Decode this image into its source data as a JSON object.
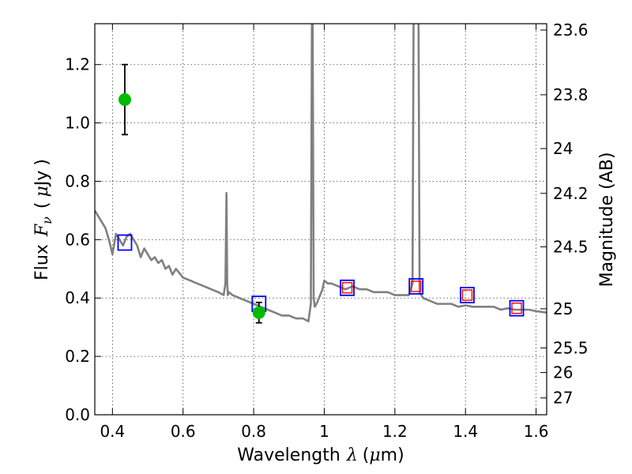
{
  "chart_data": {
    "type": "line",
    "xlabel_text": "Wavelength",
    "xlabel_symbol": "λ",
    "xlabel_unit_open": "(",
    "xlabel_unit_mu": "μ",
    "xlabel_unit_rest": "m)",
    "ylabel_text": "Flux",
    "ylabel_symbol": "F",
    "ylabel_subscript": "ν",
    "ylabel_unit_open": "(",
    "ylabel_unit_mu": "μ",
    "ylabel_unit_rest": "Jy",
    "ylabel_unit_close": ")",
    "ylabel_right": "Magnitude (AB)",
    "xlim": [
      0.35,
      1.63
    ],
    "ylim": [
      0.0,
      1.34
    ],
    "x_ticks": [
      {
        "value": 0.4,
        "label": "0.4"
      },
      {
        "value": 0.6,
        "label": "0.6"
      },
      {
        "value": 0.8,
        "label": "0.8"
      },
      {
        "value": 1.0,
        "label": "1"
      },
      {
        "value": 1.2,
        "label": "1.2"
      },
      {
        "value": 1.4,
        "label": "1.4"
      },
      {
        "value": 1.6,
        "label": "1.6"
      }
    ],
    "y_ticks": [
      {
        "value": 0.0,
        "label": "0.0"
      },
      {
        "value": 0.2,
        "label": "0.2"
      },
      {
        "value": 0.4,
        "label": "0.4"
      },
      {
        "value": 0.6,
        "label": "0.6"
      },
      {
        "value": 0.8,
        "label": "0.8"
      },
      {
        "value": 1.0,
        "label": "1.0"
      },
      {
        "value": 1.2,
        "label": "1.2"
      }
    ],
    "right_ticks": [
      {
        "mag": 23.6,
        "label": "23.6"
      },
      {
        "mag": 23.8,
        "label": "23.8"
      },
      {
        "mag": 24.0,
        "label": "24"
      },
      {
        "mag": 24.2,
        "label": "24.2"
      },
      {
        "mag": 24.5,
        "label": "24.5"
      },
      {
        "mag": 25.0,
        "label": "25"
      },
      {
        "mag": 25.5,
        "label": "25.5"
      },
      {
        "mag": 26.0,
        "label": "26"
      },
      {
        "mag": 27.0,
        "label": "27"
      }
    ],
    "grid": true,
    "colors": {
      "spectrum": "#808080",
      "model_points": "#0000ff",
      "model_inner": "#ff0000",
      "observed": "#00bb00",
      "errorbar": "#000000"
    },
    "spectrum": {
      "x": [
        0.35,
        0.36,
        0.37,
        0.38,
        0.39,
        0.4,
        0.41,
        0.42,
        0.43,
        0.44,
        0.45,
        0.46,
        0.47,
        0.48,
        0.49,
        0.5,
        0.51,
        0.52,
        0.53,
        0.54,
        0.55,
        0.56,
        0.57,
        0.58,
        0.6,
        0.62,
        0.64,
        0.66,
        0.68,
        0.7,
        0.715,
        0.72,
        0.723,
        0.725,
        0.727,
        0.73,
        0.74,
        0.76,
        0.78,
        0.8,
        0.82,
        0.84,
        0.86,
        0.88,
        0.9,
        0.92,
        0.94,
        0.955,
        0.962,
        0.965,
        0.967,
        0.97,
        0.973,
        0.978,
        0.985,
        0.995,
        1.0,
        1.01,
        1.02,
        1.04,
        1.06,
        1.08,
        1.1,
        1.12,
        1.14,
        1.16,
        1.18,
        1.2,
        1.22,
        1.24,
        1.25,
        1.253,
        1.256,
        1.26,
        1.264,
        1.267,
        1.27,
        1.28,
        1.3,
        1.32,
        1.34,
        1.36,
        1.38,
        1.4,
        1.42,
        1.44,
        1.46,
        1.48,
        1.5,
        1.52,
        1.54,
        1.56,
        1.58,
        1.6,
        1.63
      ],
      "y": [
        0.7,
        0.68,
        0.66,
        0.64,
        0.6,
        0.55,
        0.62,
        0.6,
        0.58,
        0.61,
        0.62,
        0.6,
        0.58,
        0.54,
        0.57,
        0.55,
        0.53,
        0.54,
        0.52,
        0.53,
        0.5,
        0.51,
        0.48,
        0.5,
        0.47,
        0.46,
        0.45,
        0.44,
        0.43,
        0.42,
        0.41,
        0.45,
        0.76,
        0.45,
        0.41,
        0.42,
        0.41,
        0.4,
        0.39,
        0.38,
        0.37,
        0.36,
        0.35,
        0.34,
        0.34,
        0.33,
        0.33,
        0.32,
        0.38,
        1.36,
        1.36,
        0.4,
        0.37,
        0.38,
        0.4,
        0.43,
        0.46,
        0.45,
        0.45,
        0.44,
        0.43,
        0.44,
        0.43,
        0.43,
        0.42,
        0.42,
        0.42,
        0.41,
        0.41,
        0.41,
        0.45,
        1.36,
        1.36,
        1.36,
        1.36,
        1.36,
        0.42,
        0.4,
        0.39,
        0.38,
        0.38,
        0.38,
        0.37,
        0.375,
        0.37,
        0.37,
        0.37,
        0.37,
        0.36,
        0.365,
        0.36,
        0.36,
        0.36,
        0.355,
        0.35
      ]
    },
    "model_points": [
      {
        "x": 0.435,
        "y": 0.59,
        "inner": false
      },
      {
        "x": 0.815,
        "y": 0.38,
        "inner": false
      },
      {
        "x": 1.065,
        "y": 0.435,
        "inner": true
      },
      {
        "x": 1.26,
        "y": 0.44,
        "inner": true
      },
      {
        "x": 1.405,
        "y": 0.41,
        "inner": true
      },
      {
        "x": 1.545,
        "y": 0.365,
        "inner": true
      }
    ],
    "observed_points": [
      {
        "x": 0.435,
        "y": 1.08,
        "yerr": 0.12
      },
      {
        "x": 0.815,
        "y": 0.35,
        "yerr": 0.035
      }
    ]
  }
}
